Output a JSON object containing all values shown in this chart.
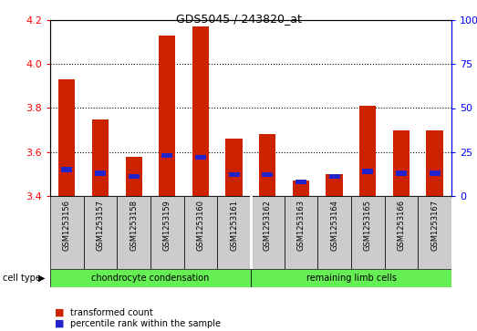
{
  "title": "GDS5045 / 243820_at",
  "samples": [
    "GSM1253156",
    "GSM1253157",
    "GSM1253158",
    "GSM1253159",
    "GSM1253160",
    "GSM1253161",
    "GSM1253162",
    "GSM1253163",
    "GSM1253164",
    "GSM1253165",
    "GSM1253166",
    "GSM1253167"
  ],
  "transformed_count": [
    3.93,
    3.75,
    3.58,
    4.13,
    4.17,
    3.66,
    3.68,
    3.47,
    3.5,
    3.81,
    3.7,
    3.7
  ],
  "percentile_rank": [
    15,
    13,
    11,
    23,
    22,
    12,
    12,
    8,
    11,
    14,
    13,
    13
  ],
  "bar_color": "#cc2200",
  "blue_color": "#2222cc",
  "ylim_left": [
    3.4,
    4.2
  ],
  "ylim_right": [
    0,
    100
  ],
  "yticks_left": [
    3.4,
    3.6,
    3.8,
    4.0,
    4.2
  ],
  "yticks_right": [
    0,
    25,
    50,
    75,
    100
  ],
  "ytick_labels_right": [
    "0",
    "25",
    "50",
    "75",
    "100%"
  ],
  "group1_label": "chondrocyte condensation",
  "group2_label": "remaining limb cells",
  "group1_count": 6,
  "group2_count": 6,
  "cell_type_label": "cell type",
  "legend1": "transformed count",
  "legend2": "percentile rank within the sample",
  "bar_width": 0.5,
  "base_value": 3.4,
  "green_color": "#66ee55",
  "gray_color": "#cccccc"
}
